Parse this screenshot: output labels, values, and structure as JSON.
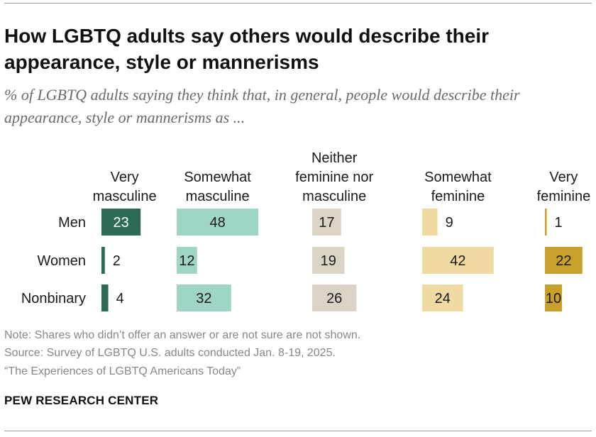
{
  "title": "How LGBTQ adults say others would describe their appearance, style or mannerisms",
  "subtitle": "% of LGBTQ adults saying they think that, in general, people would describe their appearance, style or mannerisms as ...",
  "chart_data": {
    "type": "bar",
    "layout": "small-multiples-horizontal",
    "categories": [
      "Men",
      "Women",
      "Nonbinary"
    ],
    "series": [
      {
        "name": "Very masculine",
        "name_lines": [
          "Very",
          "masculine"
        ],
        "values": [
          23,
          2,
          4
        ],
        "color": "#2e6b55",
        "label_color": "#ffffff"
      },
      {
        "name": "Somewhat masculine",
        "name_lines": [
          "Somewhat",
          "masculine"
        ],
        "values": [
          48,
          12,
          32
        ],
        "color": "#9fd5c6",
        "label_color": "#1a1a1a"
      },
      {
        "name": "Neither feminine nor masculine",
        "name_lines": [
          "Neither",
          "feminine nor",
          "masculine"
        ],
        "values": [
          17,
          19,
          26
        ],
        "color": "#d9d4c6",
        "label_color": "#1a1a1a"
      },
      {
        "name": "Somewhat feminine",
        "name_lines": [
          "Somewhat",
          "feminine"
        ],
        "values": [
          9,
          42,
          24
        ],
        "color": "#efdba2",
        "label_color": "#1a1a1a"
      },
      {
        "name": "Very feminine",
        "name_lines": [
          "Very",
          "feminine"
        ],
        "values": [
          1,
          22,
          10
        ],
        "color": "#c8a02c",
        "label_color": "#1a1a1a"
      }
    ]
  },
  "footer": {
    "note": "Note: Shares who didn’t offer an answer or are not sure are not shown.",
    "source": "Source: Survey of LGBTQ U.S. adults conducted Jan. 8-19, 2025.",
    "report": "“The Experiences of LGBTQ Americans Today”",
    "brand": "PEW RESEARCH CENTER"
  }
}
